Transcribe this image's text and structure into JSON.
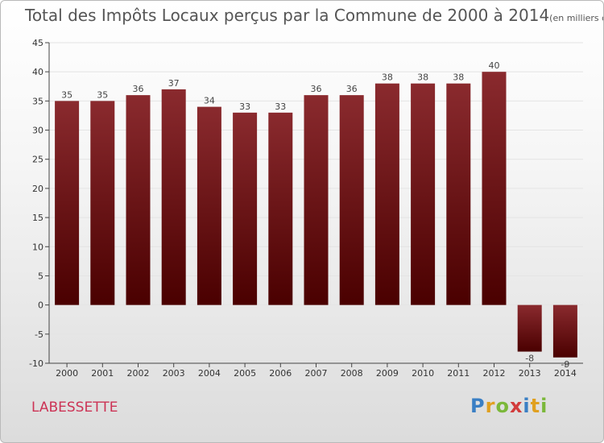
{
  "header": {
    "title": "Total des Impôts Locaux perçus par la Commune de 2000 à 2014",
    "unit": "(en milliers d'€)"
  },
  "footer": {
    "commune": "LABESSETTE",
    "brand_letters": [
      {
        "ch": "P",
        "color": "#3a7fc4"
      },
      {
        "ch": "r",
        "color": "#e0a020"
      },
      {
        "ch": "o",
        "color": "#7bb83a"
      },
      {
        "ch": "x",
        "color": "#d23b3b"
      },
      {
        "ch": "i",
        "color": "#3a7fc4"
      },
      {
        "ch": "t",
        "color": "#e0a020"
      },
      {
        "ch": "i",
        "color": "#7bb83a"
      }
    ]
  },
  "colors": {
    "bar_top": "#8a2a2e",
    "bar_bottom": "#4a0000",
    "grid": "#e4e4e4",
    "axis": "#444444"
  },
  "chart_data": {
    "type": "bar",
    "title": "Total des Impôts Locaux perçus par la Commune de 2000 à 2014",
    "unit": "(en milliers d'€)",
    "categories": [
      "2000",
      "2001",
      "2002",
      "2003",
      "2004",
      "2005",
      "2006",
      "2007",
      "2008",
      "2009",
      "2010",
      "2011",
      "2012",
      "2013",
      "2014"
    ],
    "values": [
      35,
      35,
      36,
      37,
      34,
      33,
      33,
      36,
      36,
      38,
      38,
      38,
      40,
      -8,
      -9
    ],
    "ylim": [
      -10,
      45
    ],
    "yticks": [
      -10,
      -5,
      0,
      5,
      10,
      15,
      20,
      25,
      30,
      35,
      40,
      45
    ],
    "grid": true,
    "legend": "none"
  }
}
